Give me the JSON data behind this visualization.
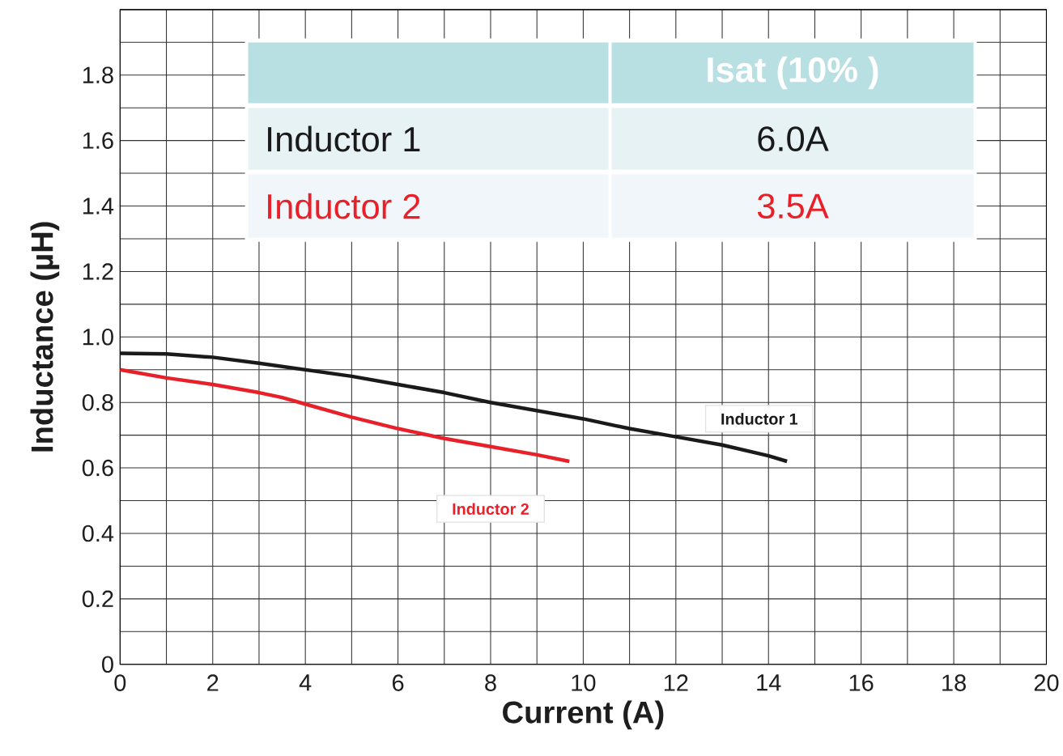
{
  "chart_data": {
    "type": "line",
    "xlabel": "Current (A)",
    "ylabel": "Inductance (µH)",
    "xlim": [
      0,
      20
    ],
    "ylim": [
      0,
      2.0
    ],
    "xticks": [
      0,
      {
        "value": 1,
        "label": null
      },
      2,
      {
        "value": 3,
        "label": null
      },
      4,
      {
        "value": 5,
        "label": null
      },
      6,
      {
        "value": 7,
        "label": null
      },
      8,
      {
        "value": 9,
        "label": null
      },
      10,
      {
        "value": 11,
        "label": null
      },
      12,
      {
        "value": 13,
        "label": null
      },
      14,
      {
        "value": 15,
        "label": null
      },
      16,
      {
        "value": 17,
        "label": null
      },
      18,
      {
        "value": 19,
        "label": null
      },
      20
    ],
    "yticks": [
      0,
      {
        "value": 0.1,
        "label": null
      },
      0.2,
      {
        "value": 0.3,
        "label": null
      },
      0.4,
      {
        "value": 0.5,
        "label": null
      },
      0.6,
      {
        "value": 0.7,
        "label": null
      },
      0.8,
      {
        "value": 0.9,
        "label": null
      },
      "1.0",
      {
        "value": 1.1,
        "label": null
      },
      1.2,
      {
        "value": 1.3,
        "label": null
      },
      1.4,
      {
        "value": 1.5,
        "label": null
      },
      1.6,
      {
        "value": 1.7,
        "label": null
      },
      1.8,
      {
        "value": 1.9,
        "label": null
      },
      {
        "value": 2.0,
        "label": null
      }
    ],
    "grid": true,
    "marker": "none",
    "line_style": "solid",
    "series": [
      {
        "name": "Inductor 1",
        "color": "#1a1a1a",
        "x": [
          0,
          1,
          2,
          3,
          4,
          5,
          6,
          7,
          8,
          9,
          10,
          11,
          12,
          13,
          14,
          14.4
        ],
        "values": [
          0.95,
          0.948,
          0.938,
          0.92,
          0.9,
          0.88,
          0.855,
          0.83,
          0.8,
          0.775,
          0.75,
          0.72,
          0.695,
          0.67,
          0.637,
          0.62
        ]
      },
      {
        "name": "Inductor 2",
        "color": "#e8202a",
        "x": [
          0,
          1,
          2,
          3,
          3.5,
          4,
          5,
          6,
          7,
          8,
          9,
          9.7
        ],
        "values": [
          0.9,
          0.875,
          0.855,
          0.83,
          0.815,
          0.795,
          0.755,
          0.72,
          0.69,
          0.665,
          0.64,
          0.62
        ]
      }
    ],
    "annotations": [
      "Isat (10% )",
      "Inductor 1",
      "6.0A",
      "Inductor 2",
      "3.5A"
    ]
  }
}
